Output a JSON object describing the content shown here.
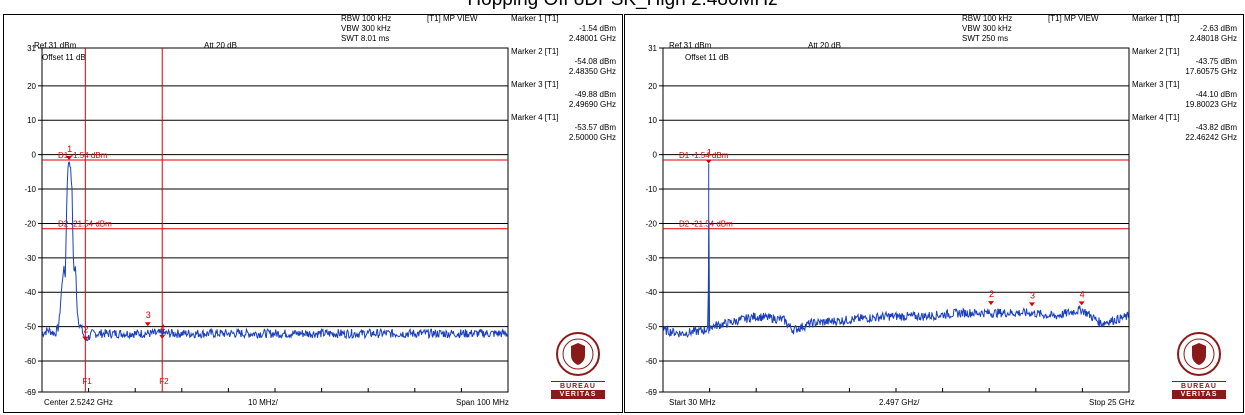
{
  "page": {
    "title": "Hopping Off 8DPSK_High 2.480MHz"
  },
  "colors": {
    "trace": "#1a3fbf",
    "marker": "#e00000",
    "grid": "#000000",
    "brand": "#8a1a1a"
  },
  "logo": {
    "line1": "BUREAU",
    "line2": "VERITAS",
    "seal_text": "BUREAU VERITAS 1828"
  },
  "chart_data": [
    {
      "type": "line",
      "header": {
        "rbw": "RBW 100 kHz",
        "vbw": "VBW 300 kHz",
        "swt": "SWT 8.01 ms",
        "view": "[T1] MP VIEW",
        "ref": "Ref 31 dBm",
        "att": "Att 20 dB",
        "offset": "Offset 11 dB"
      },
      "footer": {
        "left": "Center 2.5242 GHz",
        "mid": "10 MHz/",
        "right": "Span 100 MHz"
      },
      "yticks": [
        "31",
        "20",
        "10",
        "0",
        "-10",
        "-20",
        "-30",
        "-40",
        "-50",
        "-60",
        "-69"
      ],
      "ylim": [
        -69,
        31
      ],
      "xlim": [
        2.4742,
        2.5742
      ],
      "ref_lines": [
        {
          "y": -1.54,
          "label": "D1 -1.54 dBm"
        },
        {
          "y": -21.54,
          "label": "D2 -21.54 dBm"
        }
      ],
      "vlines": [
        {
          "x": 2.4835,
          "label": "F1"
        },
        {
          "x": 2.5,
          "label": "F2"
        }
      ],
      "markers": [
        {
          "name": "Marker 1 [T1]",
          "id": "1",
          "x": 2.48001,
          "y": -1.54,
          "level": "-1.54 dBm",
          "freq": "2.48001 GHz"
        },
        {
          "name": "Marker 2 [T1]",
          "id": "2",
          "x": 2.4835,
          "y": -54.08,
          "level": "-54.08 dBm",
          "freq": "2.48350 GHz"
        },
        {
          "name": "Marker 3 [T1]",
          "id": "3",
          "x": 2.4969,
          "y": -49.88,
          "level": "-49.88 dBm",
          "freq": "2.49690 GHz"
        },
        {
          "name": "Marker 4 [T1]",
          "id": "4",
          "x": 2.5,
          "y": -53.57,
          "level": "-53.57 dBm",
          "freq": "2.50000 GHz"
        }
      ],
      "series": [
        {
          "values": [
            [
              2.4742,
              -52
            ],
            [
              2.4755,
              -51
            ],
            [
              2.477,
              -52
            ],
            [
              2.4778,
              -50
            ],
            [
              2.4783,
              -41
            ],
            [
              2.4788,
              -33
            ],
            [
              2.4792,
              -35
            ],
            [
              2.4796,
              -8
            ],
            [
              2.4799,
              -2
            ],
            [
              2.48,
              -1.54
            ],
            [
              2.4802,
              -2.5
            ],
            [
              2.4806,
              -9
            ],
            [
              2.481,
              -34
            ],
            [
              2.4814,
              -33
            ],
            [
              2.4818,
              -46
            ],
            [
              2.4822,
              -49
            ],
            [
              2.4828,
              -51
            ],
            [
              2.4835,
              -54
            ],
            [
              2.485,
              -52
            ],
            [
              2.5742,
              -52
            ]
          ]
        }
      ]
    },
    {
      "type": "line",
      "header": {
        "rbw": "RBW 100 kHz",
        "vbw": "VBW 300 kHz",
        "swt": "SWT 250 ms",
        "view": "[T1] MP VIEW",
        "ref": "Ref 31 dBm",
        "att": "Att 20 dB",
        "offset": "Offset 11 dB"
      },
      "footer": {
        "left": "Start 30 MHz",
        "mid": "2.497 GHz/",
        "right": "Stop 25 GHz"
      },
      "yticks": [
        "31",
        "20",
        "10",
        "0",
        "-10",
        "-20",
        "-30",
        "-40",
        "-50",
        "-60",
        "-69"
      ],
      "ylim": [
        -69,
        31
      ],
      "xlim": [
        0.03,
        25
      ],
      "ref_lines": [
        {
          "y": -1.54,
          "label": "D1 -1.54 dBm"
        },
        {
          "y": -21.54,
          "label": "D2 -21.54 dBm"
        }
      ],
      "vlines": [],
      "markers": [
        {
          "name": "Marker 1 [T1]",
          "id": "1",
          "x": 2.48018,
          "y": -2.63,
          "level": "-2.63 dBm",
          "freq": "2.48018 GHz"
        },
        {
          "name": "Marker 2 [T1]",
          "id": "2",
          "x": 17.60575,
          "y": -43.75,
          "level": "-43.75 dBm",
          "freq": "17.60575 GHz"
        },
        {
          "name": "Marker 3 [T1]",
          "id": "3",
          "x": 19.80023,
          "y": -44.1,
          "level": "-44.10 dBm",
          "freq": "19.80023 GHz"
        },
        {
          "name": "Marker 4 [T1]",
          "id": "4",
          "x": 22.46242,
          "y": -43.82,
          "level": "-43.82 dBm",
          "freq": "22.46242 GHz"
        }
      ],
      "series": [
        {
          "values": [
            [
              0.03,
              -51
            ],
            [
              1,
              -52
            ],
            [
              2.3,
              -51
            ],
            [
              2.45,
              -50
            ],
            [
              2.48,
              -2.63
            ],
            [
              2.51,
              -50
            ],
            [
              3.5,
              -49
            ],
            [
              5,
              -47
            ],
            [
              6.5,
              -48
            ],
            [
              7,
              -51
            ],
            [
              8,
              -49
            ],
            [
              10,
              -48
            ],
            [
              12,
              -47
            ],
            [
              14,
              -47
            ],
            [
              16,
              -46
            ],
            [
              17.6,
              -46
            ],
            [
              19.8,
              -46
            ],
            [
              21,
              -47
            ],
            [
              22.46,
              -45
            ],
            [
              23.5,
              -49
            ],
            [
              25,
              -47
            ]
          ]
        }
      ]
    }
  ]
}
